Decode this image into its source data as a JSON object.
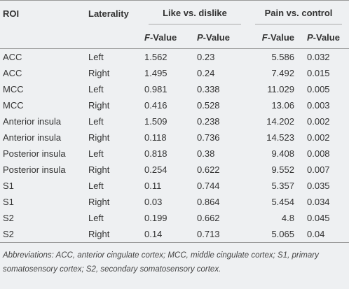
{
  "table": {
    "columns": [
      "ROI",
      "Laterality"
    ],
    "groups": [
      "Like vs. dislike",
      "Pain vs. control"
    ],
    "subcolumns": [
      "F-Value",
      "P-Value",
      "F-Value",
      "P-Value"
    ],
    "rows": [
      [
        "ACC",
        "Left",
        1.562,
        0.23,
        5.586,
        0.032
      ],
      [
        "ACC",
        "Right",
        1.495,
        0.24,
        7.492,
        0.015
      ],
      [
        "MCC",
        "Left",
        0.981,
        0.338,
        11.029,
        0.005
      ],
      [
        "MCC",
        "Right",
        0.416,
        0.528,
        13.06,
        0.003
      ],
      [
        "Anterior insula",
        "Left",
        1.509,
        0.238,
        14.202,
        0.002
      ],
      [
        "Anterior insula",
        "Right",
        0.118,
        0.736,
        14.523,
        0.002
      ],
      [
        "Posterior insula",
        "Left",
        0.818,
        0.38,
        9.408,
        0.008
      ],
      [
        "Posterior insula",
        "Right",
        0.254,
        0.622,
        9.552,
        0.007
      ],
      [
        "S1",
        "Left",
        0.11,
        0.744,
        5.357,
        0.035
      ],
      [
        "S1",
        "Right",
        0.03,
        0.864,
        5.454,
        0.034
      ],
      [
        "S2",
        "Left",
        0.199,
        0.662,
        4.8,
        0.045
      ],
      [
        "S2",
        "Right",
        0.14,
        0.713,
        5.065,
        0.04
      ]
    ]
  },
  "footnote": "Abbreviations: ACC, anterior cingulate cortex; MCC, middle cingulate cortex; S1, primary somatosensory cortex; S2, secondary somatosensory cortex."
}
